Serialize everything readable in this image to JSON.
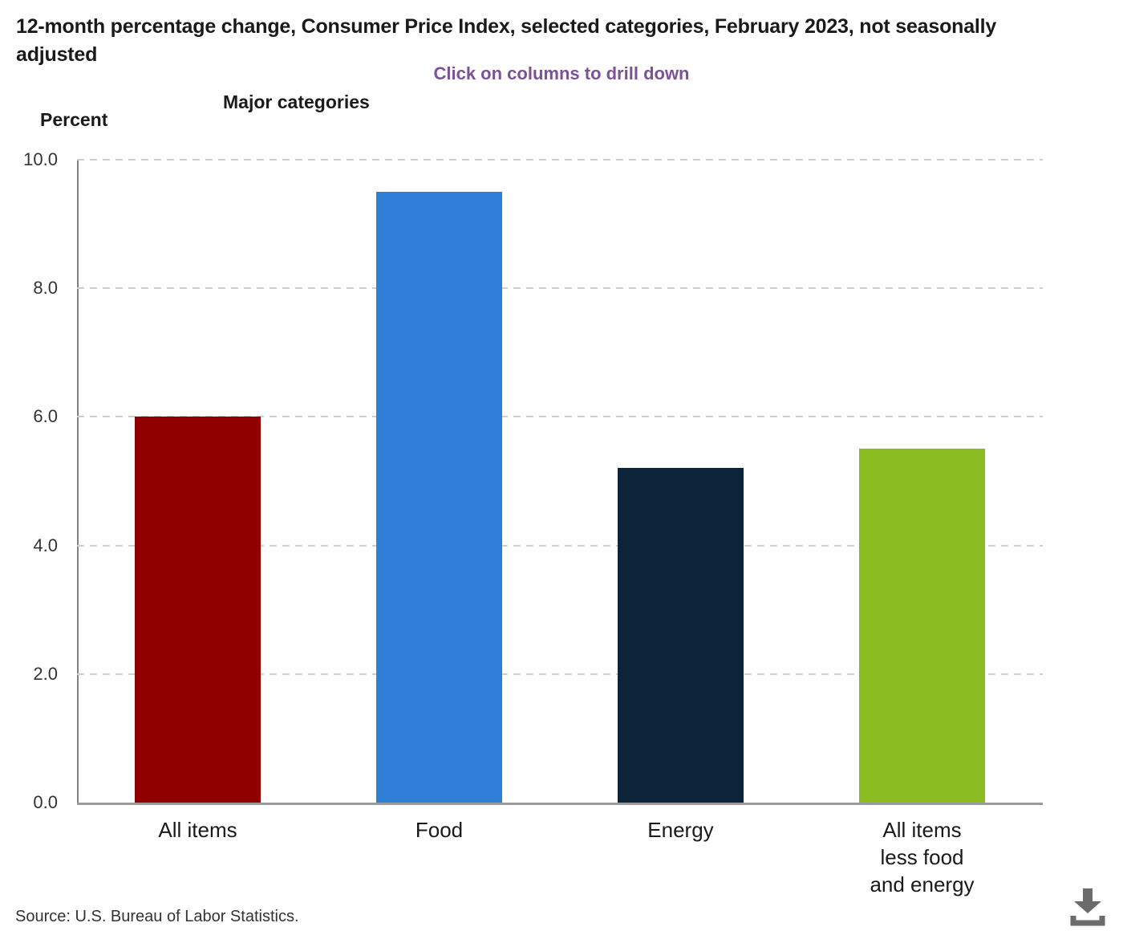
{
  "chart_data": {
    "type": "bar",
    "title": "12-month percentage change, Consumer Price Index, selected categories, February 2023, not seasonally adjusted",
    "subtitle": "Click on columns to drill down",
    "axis_title": "Major categories",
    "ylabel": "Percent",
    "xlabel": "",
    "ylim": [
      0,
      10
    ],
    "grid": "horizontal-dashed",
    "legend_position": "none",
    "yticks": [
      {
        "label": "0.0",
        "value": 0
      },
      {
        "label": "2.0",
        "value": 2
      },
      {
        "label": "4.0",
        "value": 4
      },
      {
        "label": "6.0",
        "value": 6
      },
      {
        "label": "8.0",
        "value": 8
      },
      {
        "label": "10.0",
        "value": 10
      }
    ],
    "categories": [
      "All items",
      "Food",
      "Energy",
      "All items less food and energy"
    ],
    "values": [
      6.0,
      9.5,
      5.2,
      5.5
    ],
    "bars": [
      {
        "label": "All items",
        "label_lines": [
          "All items"
        ],
        "value": 6.0,
        "color": "#900000"
      },
      {
        "label": "Food",
        "label_lines": [
          "Food"
        ],
        "value": 9.5,
        "color": "#2f7ed8"
      },
      {
        "label": "Energy",
        "label_lines": [
          "Energy"
        ],
        "value": 5.2,
        "color": "#0d233a"
      },
      {
        "label": "All items less food and energy",
        "label_lines": [
          "All items",
          "less food",
          "and energy"
        ],
        "value": 5.5,
        "color": "#8bbc21"
      }
    ],
    "source": "Source: U.S. Bureau of Labor Statistics."
  },
  "icons": {
    "download": "download-icon"
  },
  "colors": {
    "subtitle_accent": "#7b5295",
    "axis_line": "#808080",
    "baseline": "#9a9a9a",
    "gridline": "#cfcfcf",
    "download_icon": "#6b6b6b"
  }
}
